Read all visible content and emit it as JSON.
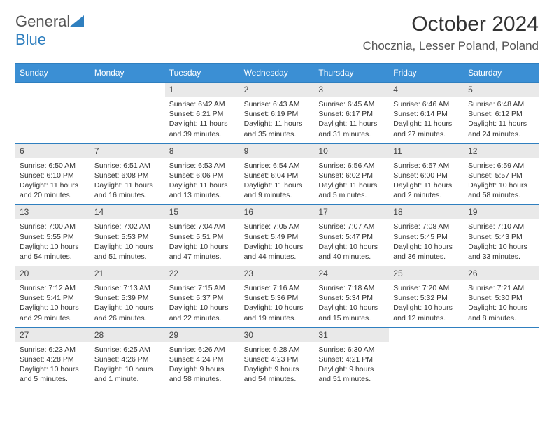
{
  "brand": {
    "part1": "General",
    "part2": "Blue"
  },
  "title": "October 2024",
  "location": "Chocznia, Lesser Poland, Poland",
  "colors": {
    "header_bg": "#3b8fd4",
    "accent_line": "#2f7fbf",
    "date_banner_bg": "#e9e9e9",
    "text": "#333333",
    "page_bg": "#ffffff",
    "logo_blue": "#2f7fbf",
    "logo_gray": "#555555"
  },
  "typography": {
    "title_fontsize": 30,
    "location_fontsize": 17,
    "dayhead_fontsize": 12,
    "cell_fontsize": 10.5
  },
  "day_names": [
    "Sunday",
    "Monday",
    "Tuesday",
    "Wednesday",
    "Thursday",
    "Friday",
    "Saturday"
  ],
  "weeks": [
    [
      {},
      {},
      {
        "date": "1",
        "sunrise": "Sunrise: 6:42 AM",
        "sunset": "Sunset: 6:21 PM",
        "daylight": "Daylight: 11 hours and 39 minutes."
      },
      {
        "date": "2",
        "sunrise": "Sunrise: 6:43 AM",
        "sunset": "Sunset: 6:19 PM",
        "daylight": "Daylight: 11 hours and 35 minutes."
      },
      {
        "date": "3",
        "sunrise": "Sunrise: 6:45 AM",
        "sunset": "Sunset: 6:17 PM",
        "daylight": "Daylight: 11 hours and 31 minutes."
      },
      {
        "date": "4",
        "sunrise": "Sunrise: 6:46 AM",
        "sunset": "Sunset: 6:14 PM",
        "daylight": "Daylight: 11 hours and 27 minutes."
      },
      {
        "date": "5",
        "sunrise": "Sunrise: 6:48 AM",
        "sunset": "Sunset: 6:12 PM",
        "daylight": "Daylight: 11 hours and 24 minutes."
      }
    ],
    [
      {
        "date": "6",
        "sunrise": "Sunrise: 6:50 AM",
        "sunset": "Sunset: 6:10 PM",
        "daylight": "Daylight: 11 hours and 20 minutes."
      },
      {
        "date": "7",
        "sunrise": "Sunrise: 6:51 AM",
        "sunset": "Sunset: 6:08 PM",
        "daylight": "Daylight: 11 hours and 16 minutes."
      },
      {
        "date": "8",
        "sunrise": "Sunrise: 6:53 AM",
        "sunset": "Sunset: 6:06 PM",
        "daylight": "Daylight: 11 hours and 13 minutes."
      },
      {
        "date": "9",
        "sunrise": "Sunrise: 6:54 AM",
        "sunset": "Sunset: 6:04 PM",
        "daylight": "Daylight: 11 hours and 9 minutes."
      },
      {
        "date": "10",
        "sunrise": "Sunrise: 6:56 AM",
        "sunset": "Sunset: 6:02 PM",
        "daylight": "Daylight: 11 hours and 5 minutes."
      },
      {
        "date": "11",
        "sunrise": "Sunrise: 6:57 AM",
        "sunset": "Sunset: 6:00 PM",
        "daylight": "Daylight: 11 hours and 2 minutes."
      },
      {
        "date": "12",
        "sunrise": "Sunrise: 6:59 AM",
        "sunset": "Sunset: 5:57 PM",
        "daylight": "Daylight: 10 hours and 58 minutes."
      }
    ],
    [
      {
        "date": "13",
        "sunrise": "Sunrise: 7:00 AM",
        "sunset": "Sunset: 5:55 PM",
        "daylight": "Daylight: 10 hours and 54 minutes."
      },
      {
        "date": "14",
        "sunrise": "Sunrise: 7:02 AM",
        "sunset": "Sunset: 5:53 PM",
        "daylight": "Daylight: 10 hours and 51 minutes."
      },
      {
        "date": "15",
        "sunrise": "Sunrise: 7:04 AM",
        "sunset": "Sunset: 5:51 PM",
        "daylight": "Daylight: 10 hours and 47 minutes."
      },
      {
        "date": "16",
        "sunrise": "Sunrise: 7:05 AM",
        "sunset": "Sunset: 5:49 PM",
        "daylight": "Daylight: 10 hours and 44 minutes."
      },
      {
        "date": "17",
        "sunrise": "Sunrise: 7:07 AM",
        "sunset": "Sunset: 5:47 PM",
        "daylight": "Daylight: 10 hours and 40 minutes."
      },
      {
        "date": "18",
        "sunrise": "Sunrise: 7:08 AM",
        "sunset": "Sunset: 5:45 PM",
        "daylight": "Daylight: 10 hours and 36 minutes."
      },
      {
        "date": "19",
        "sunrise": "Sunrise: 7:10 AM",
        "sunset": "Sunset: 5:43 PM",
        "daylight": "Daylight: 10 hours and 33 minutes."
      }
    ],
    [
      {
        "date": "20",
        "sunrise": "Sunrise: 7:12 AM",
        "sunset": "Sunset: 5:41 PM",
        "daylight": "Daylight: 10 hours and 29 minutes."
      },
      {
        "date": "21",
        "sunrise": "Sunrise: 7:13 AM",
        "sunset": "Sunset: 5:39 PM",
        "daylight": "Daylight: 10 hours and 26 minutes."
      },
      {
        "date": "22",
        "sunrise": "Sunrise: 7:15 AM",
        "sunset": "Sunset: 5:37 PM",
        "daylight": "Daylight: 10 hours and 22 minutes."
      },
      {
        "date": "23",
        "sunrise": "Sunrise: 7:16 AM",
        "sunset": "Sunset: 5:36 PM",
        "daylight": "Daylight: 10 hours and 19 minutes."
      },
      {
        "date": "24",
        "sunrise": "Sunrise: 7:18 AM",
        "sunset": "Sunset: 5:34 PM",
        "daylight": "Daylight: 10 hours and 15 minutes."
      },
      {
        "date": "25",
        "sunrise": "Sunrise: 7:20 AM",
        "sunset": "Sunset: 5:32 PM",
        "daylight": "Daylight: 10 hours and 12 minutes."
      },
      {
        "date": "26",
        "sunrise": "Sunrise: 7:21 AM",
        "sunset": "Sunset: 5:30 PM",
        "daylight": "Daylight: 10 hours and 8 minutes."
      }
    ],
    [
      {
        "date": "27",
        "sunrise": "Sunrise: 6:23 AM",
        "sunset": "Sunset: 4:28 PM",
        "daylight": "Daylight: 10 hours and 5 minutes."
      },
      {
        "date": "28",
        "sunrise": "Sunrise: 6:25 AM",
        "sunset": "Sunset: 4:26 PM",
        "daylight": "Daylight: 10 hours and 1 minute."
      },
      {
        "date": "29",
        "sunrise": "Sunrise: 6:26 AM",
        "sunset": "Sunset: 4:24 PM",
        "daylight": "Daylight: 9 hours and 58 minutes."
      },
      {
        "date": "30",
        "sunrise": "Sunrise: 6:28 AM",
        "sunset": "Sunset: 4:23 PM",
        "daylight": "Daylight: 9 hours and 54 minutes."
      },
      {
        "date": "31",
        "sunrise": "Sunrise: 6:30 AM",
        "sunset": "Sunset: 4:21 PM",
        "daylight": "Daylight: 9 hours and 51 minutes."
      },
      {},
      {}
    ]
  ]
}
